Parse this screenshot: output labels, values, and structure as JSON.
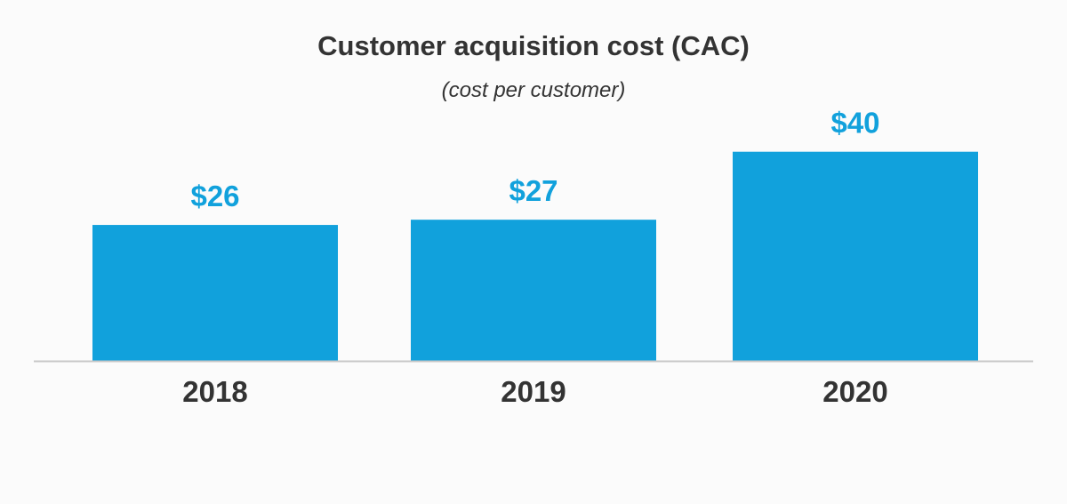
{
  "chart_data": {
    "type": "bar",
    "title": "Customer acquisition cost (CAC)",
    "subtitle": "(cost per customer)",
    "categories": [
      "2018",
      "2019",
      "2020"
    ],
    "values": [
      26,
      27,
      40
    ],
    "value_labels": [
      "$26",
      "$27",
      "$40"
    ],
    "xlabel": "",
    "ylabel": "",
    "ylim": [
      0,
      51
    ],
    "grid": false,
    "legend": "none",
    "colors": {
      "bar": "#11a1dc",
      "label": "#11a1dc",
      "axis": "#c8c8c8",
      "text": "#333333",
      "background": "#fbfbfb"
    }
  }
}
